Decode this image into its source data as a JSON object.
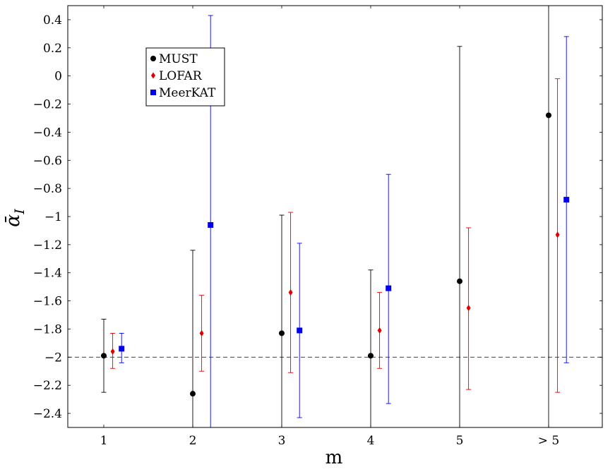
{
  "chart_data": {
    "type": "scatter",
    "categories": [
      "1",
      "2",
      "3",
      "4",
      "5",
      "> 5"
    ],
    "xlabel": "m",
    "ylabel": "ᾱ",
    "ylabel_sub": "I",
    "ylim": [
      -2.5,
      0.5
    ],
    "yticks": [
      0.4,
      0.2,
      0,
      -0.2,
      -0.4,
      -0.6,
      -0.8,
      -1,
      -1.2,
      -1.4,
      -1.6,
      -1.8,
      -2,
      -2.2,
      -2.4
    ],
    "ytick_labels": [
      "0.4",
      "0.2",
      "0",
      "−0.2",
      "−0.4",
      "−0.6",
      "−0.8",
      "−1",
      "−1.2",
      "−1.4",
      "−1.6",
      "−1.8",
      "−2",
      "−2.2",
      "−2.4"
    ],
    "reference_line": {
      "y": -2,
      "style": "dashed"
    },
    "legend": {
      "position": "top-left"
    },
    "series": [
      {
        "name": "MUST",
        "color": "#000000",
        "marker": "circle",
        "offset": 0,
        "values": [
          -1.99,
          -2.26,
          -1.83,
          -1.99,
          -1.46,
          -0.28
        ],
        "err_low": [
          -2.25,
          -2.5,
          -2.5,
          -2.5,
          -2.5,
          -2.5
        ],
        "err_high": [
          -1.73,
          -1.24,
          -0.99,
          -1.38,
          0.21,
          0.5
        ]
      },
      {
        "name": "LOFAR",
        "color": "#dd0000",
        "marker": "diamond",
        "offset": 0.1,
        "values": [
          -1.96,
          -1.83,
          -1.54,
          -1.81,
          -1.65,
          -1.13
        ],
        "err_low": [
          -2.08,
          -2.1,
          -2.11,
          -2.08,
          -2.23,
          -2.25
        ],
        "err_high": [
          -1.83,
          -1.56,
          -0.97,
          -1.54,
          -1.08,
          -0.02
        ]
      },
      {
        "name": "MeerKAT",
        "color": "#0000ee",
        "marker": "square",
        "offset": 0.2,
        "values": [
          -1.94,
          -1.06,
          -1.81,
          -1.51,
          null,
          -0.88
        ],
        "err_low": [
          -2.04,
          -2.5,
          -2.43,
          -2.33,
          null,
          -2.04
        ],
        "err_high": [
          -1.83,
          0.43,
          -1.19,
          -0.7,
          null,
          0.28
        ]
      }
    ]
  }
}
